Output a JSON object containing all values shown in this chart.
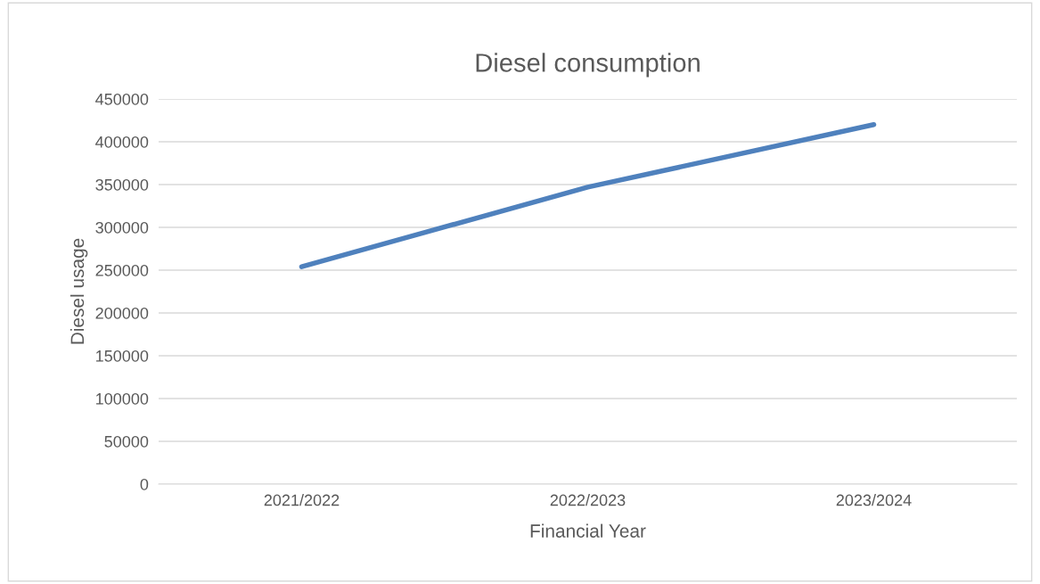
{
  "chart_data": {
    "type": "line",
    "title": "Diesel consumption",
    "xlabel": "Financial Year",
    "ylabel": "Diesel usage",
    "categories": [
      "2021/2022",
      "2022/2023",
      "2023/2024"
    ],
    "series": [
      {
        "color": "#4f81bd",
        "values": [
          254000,
          347000,
          420000
        ]
      }
    ],
    "ylim": [
      0,
      450000
    ],
    "yticks": [
      0,
      50000,
      100000,
      150000,
      200000,
      250000,
      300000,
      350000,
      400000,
      450000
    ],
    "grid": "y",
    "marker": "none",
    "line_style": "solid"
  }
}
